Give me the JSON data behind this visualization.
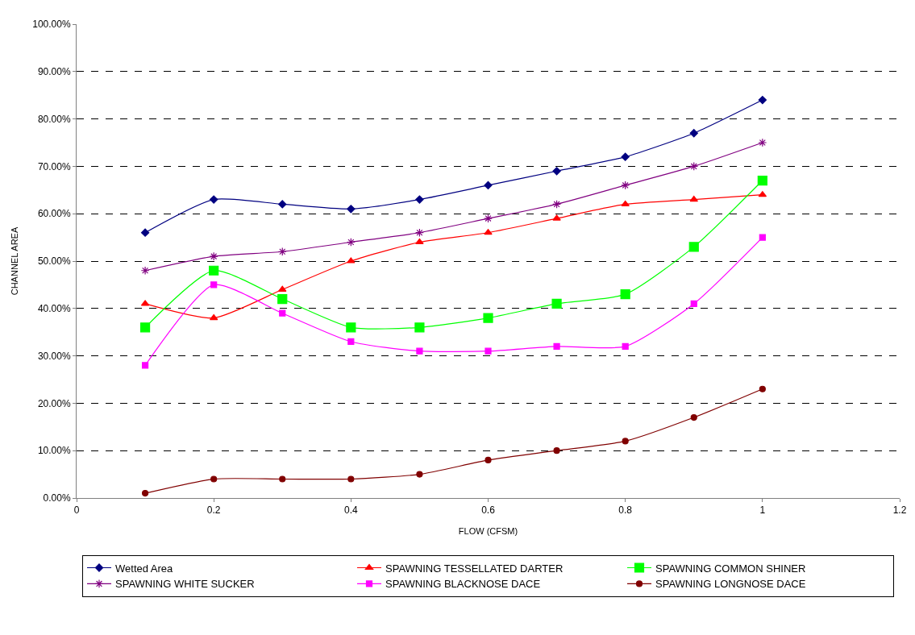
{
  "chart_data": {
    "type": "line",
    "xlabel": "FLOW (CFSM)",
    "ylabel": "CHANNEL AREA",
    "x": [
      0.1,
      0.2,
      0.3,
      0.4,
      0.5,
      0.6,
      0.7,
      0.8,
      0.9,
      1.0
    ],
    "xlim": [
      0,
      1.2
    ],
    "xticks": [
      0,
      0.2,
      0.4,
      0.6,
      0.8,
      1,
      1.2
    ],
    "ylim": [
      0,
      100
    ],
    "yticks": [
      {
        "value": 0,
        "label": "0.00%"
      },
      {
        "value": 10,
        "label": "10.00%"
      },
      {
        "value": 20,
        "label": "20.00%"
      },
      {
        "value": 30,
        "label": "30.00%"
      },
      {
        "value": 40,
        "label": "40.00%"
      },
      {
        "value": 50,
        "label": "50.00%"
      },
      {
        "value": 60,
        "label": "60.00%"
      },
      {
        "value": 70,
        "label": "70.00%"
      },
      {
        "value": 80,
        "label": "80.00%"
      },
      {
        "value": 90,
        "label": "90.00%"
      },
      {
        "value": 100,
        "label": "100.00%"
      }
    ],
    "grid": "y",
    "legend": "bottom",
    "series": [
      {
        "name": "Wetted Area",
        "color": "#000080",
        "marker": "diamond",
        "values": [
          56,
          63,
          62,
          61,
          63,
          66,
          69,
          72,
          77,
          84
        ]
      },
      {
        "name": "SPAWNING TESSELLATED DARTER",
        "color": "#ff0000",
        "marker": "triangle",
        "values": [
          41,
          38,
          44,
          50,
          54,
          56,
          59,
          62,
          63,
          64
        ]
      },
      {
        "name": "SPAWNING COMMON SHINER",
        "color": "#00ff00",
        "marker": "square",
        "values": [
          36,
          48,
          42,
          36,
          36,
          38,
          41,
          43,
          53,
          67
        ]
      },
      {
        "name": "SPAWNING WHITE SUCKER",
        "color": "#800080",
        "marker": "cross",
        "values": [
          48,
          51,
          52,
          54,
          56,
          59,
          62,
          66,
          70,
          75
        ]
      },
      {
        "name": "SPAWNING BLACKNOSE DACE",
        "color": "#ff00ff",
        "marker": "square",
        "values": [
          28,
          45,
          39,
          33,
          31,
          31,
          32,
          32,
          41,
          55
        ]
      },
      {
        "name": "SPAWNING LONGNOSE DACE",
        "color": "#800000",
        "marker": "circle",
        "values": [
          1,
          4,
          4,
          4,
          5,
          8,
          10,
          12,
          17,
          23
        ]
      }
    ]
  }
}
